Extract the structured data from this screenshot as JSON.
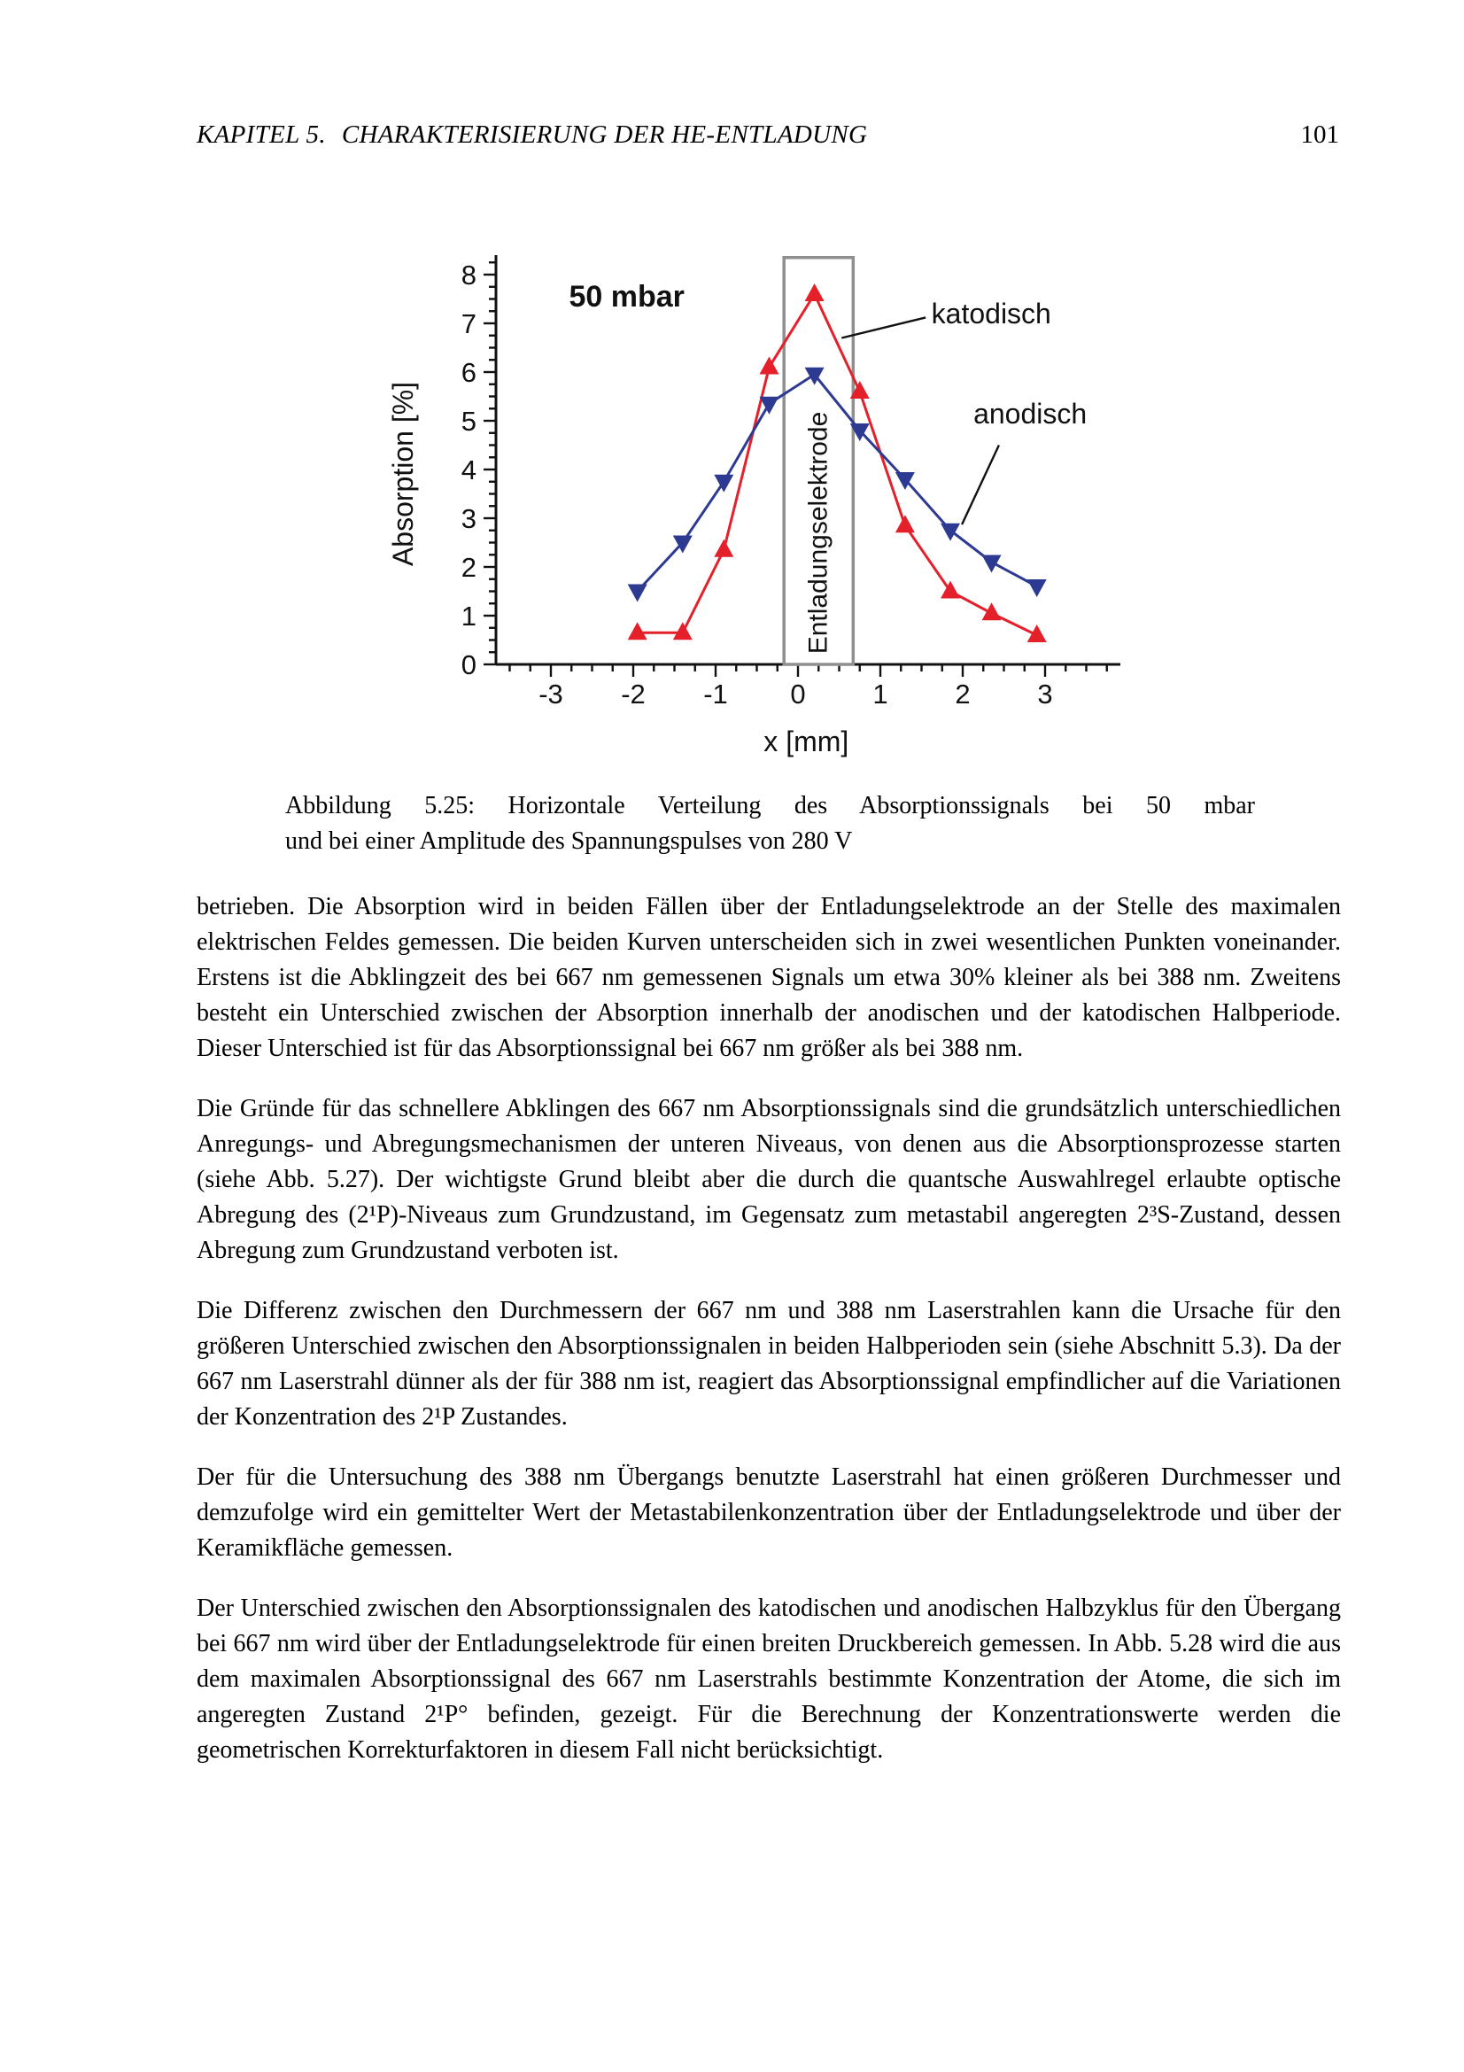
{
  "page": {
    "header": {
      "chapter": "KAPITEL 5.",
      "title": "CHARAKTERISIERUNG DER HE-ENTLADUNG",
      "page_number": "101"
    },
    "caption": {
      "line1": "Abbildung 5.25: Horizontale Verteilung des Absorptionssignals bei 50 mbar",
      "line2": "und bei einer Amplitude des Spannungspulses von 280 V"
    },
    "paragraphs": [
      "betrieben. Die Absorption wird in beiden Fällen über der Entladungselektrode an der Stelle des maximalen elektrischen Feldes gemessen. Die beiden Kurven unterscheiden sich in zwei wesentlichen Punkten voneinander. Erstens ist die Abklingzeit des bei 667 nm gemessenen Signals um etwa 30% kleiner als bei 388 nm. Zweitens besteht ein Unterschied zwischen der Absorption innerhalb der anodischen und der katodischen Halbperiode. Dieser Unterschied ist für das Absorptionssignal bei 667 nm größer als bei 388 nm.",
      "Die Gründe für das schnellere Abklingen des 667 nm Absorptionssignals sind die grundsätzlich unterschiedlichen Anregungs- und Abregungsmechanismen der unteren Niveaus, von denen aus die Absorptionsprozesse starten (siehe Abb. 5.27). Der wichtigste Grund bleibt aber die durch die quantsche Auswahlregel erlaubte optische Abregung des (2¹P)-Niveaus zum Grundzustand, im Gegensatz zum metastabil angeregten 2³S-Zustand, dessen Abregung zum Grundzustand verboten ist.",
      "Die Differenz zwischen den Durchmessern der 667 nm und 388 nm Laserstrahlen kann die Ursache für den größeren Unterschied zwischen den Absorptionssignalen in beiden Halbperioden sein (siehe Abschnitt 5.3). Da der 667 nm Laserstrahl dünner als der für 388 nm ist, reagiert das Absorptionssignal empfindlicher auf die Variationen der Konzentration des 2¹P Zustandes.",
      "Der für die Untersuchung des 388 nm Übergangs benutzte Laserstrahl hat einen größeren Durchmesser und demzufolge wird ein gemittelter Wert der Metastabilenkonzentration über der Entladungselektrode und über der Keramikfläche gemessen.",
      "Der Unterschied zwischen den Absorptionssignalen des katodischen und anodischen Halbzyklus für den Übergang bei 667 nm wird über der Entladungselektrode für einen breiten Druckbereich gemessen. In Abb. 5.28 wird die aus dem maximalen Absorptionssignal des 667 nm Laserstrahls bestimmte Konzentration der Atome, die sich im angeregten Zustand 2¹P° befinden, gezeigt. Für die Berechnung der Konzentrationswerte werden die geometrischen Korrekturfaktoren in diesem Fall nicht berücksichtigt."
    ]
  },
  "chart_data": {
    "type": "line",
    "title": "50 mbar",
    "xlabel": "x [mm]",
    "ylabel": "Absorption [%]",
    "xlim": [
      -3.7,
      3.9
    ],
    "ylim": [
      0,
      8.4
    ],
    "x_ticks": [
      -3,
      -2,
      -1,
      0,
      1,
      2,
      3
    ],
    "y_ticks": [
      0,
      1,
      2,
      3,
      4,
      5,
      6,
      7,
      8
    ],
    "x_minor_step": 0.25,
    "y_minor_step": 0.25,
    "grid": false,
    "series": [
      {
        "name": "katodisch",
        "color": "#e4202a",
        "marker": "triangle-up",
        "x": [
          -1.95,
          -1.4,
          -0.9,
          -0.35,
          0.2,
          0.75,
          1.3,
          1.85,
          2.35,
          2.9
        ],
        "y": [
          0.65,
          0.65,
          2.35,
          6.1,
          7.6,
          5.6,
          2.85,
          1.5,
          1.05,
          0.6
        ]
      },
      {
        "name": "anodisch",
        "color": "#2d3a92",
        "marker": "triangle-down",
        "x": [
          -1.95,
          -1.4,
          -0.9,
          -0.35,
          0.2,
          0.75,
          1.3,
          1.85,
          2.35,
          2.9
        ],
        "y": [
          1.5,
          2.5,
          3.75,
          5.35,
          5.95,
          4.8,
          3.8,
          2.75,
          2.1,
          1.6
        ]
      }
    ],
    "annotations": [
      {
        "text": "katodisch",
        "x": 1.62,
        "y": 7.0,
        "line": {
          "x1": 1.55,
          "y1": 7.12,
          "x2": 0.53,
          "y2": 6.7
        }
      },
      {
        "text": "anodisch",
        "x": 2.13,
        "y": 4.95,
        "line": {
          "x1": 2.44,
          "y1": 4.5,
          "x2": 1.99,
          "y2": 2.87
        }
      }
    ],
    "electrode_box": {
      "label": "Entladungselektrode",
      "x_from": -0.17,
      "x_to": 0.67,
      "y_from": 0,
      "y_to": 8.35,
      "border_color": "#8f8f8f"
    },
    "axis_color": "#111111"
  }
}
